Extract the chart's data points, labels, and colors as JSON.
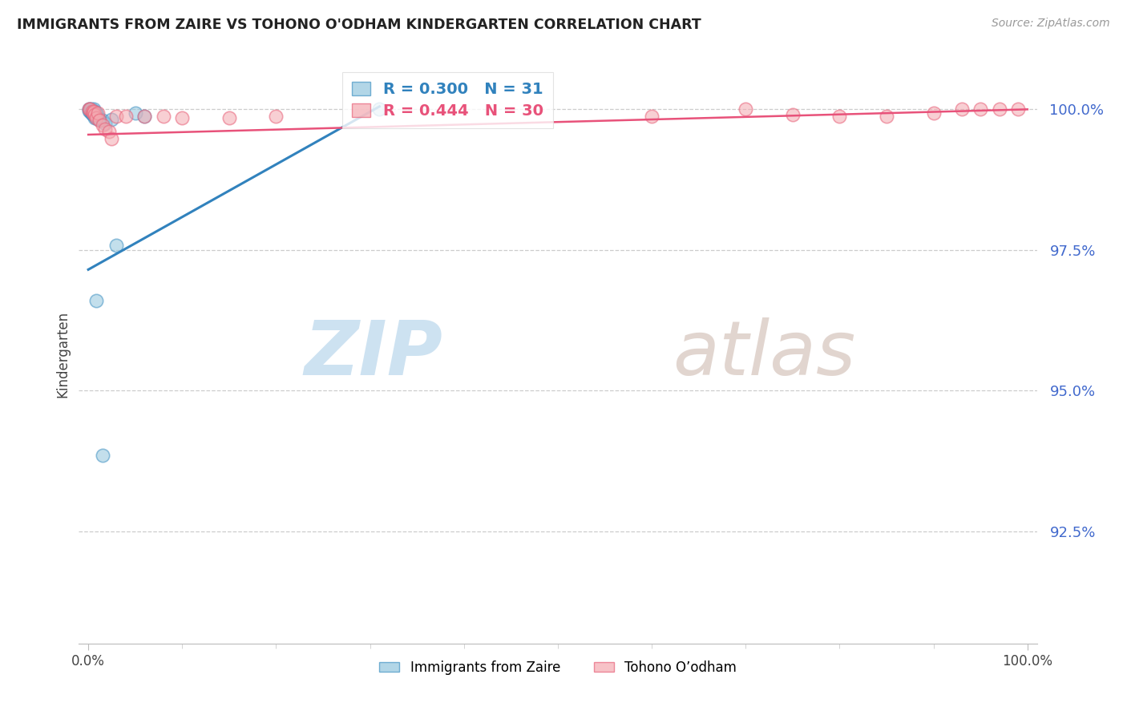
{
  "title": "IMMIGRANTS FROM ZAIRE VS TOHONO O'ODHAM KINDERGARTEN CORRELATION CHART",
  "source": "Source: ZipAtlas.com",
  "ylabel": "Kindergarten",
  "legend_blue_r": "0.300",
  "legend_blue_n": "31",
  "legend_pink_r": "0.444",
  "legend_pink_n": "30",
  "legend_label_blue": "Immigrants from Zaire",
  "legend_label_pink": "Tohono O’odham",
  "blue_color": "#92c5de",
  "pink_color": "#f4a9b0",
  "blue_edge_color": "#4393c3",
  "pink_edge_color": "#e8627a",
  "blue_line_color": "#3182bd",
  "pink_line_color": "#e8527a",
  "watermark_zip_color": "#c8dff0",
  "watermark_atlas_color": "#d8c8c0",
  "ytick_labels": [
    "100.0%",
    "97.5%",
    "95.0%",
    "92.5%"
  ],
  "ytick_values": [
    1.0,
    0.975,
    0.95,
    0.925
  ],
  "ytick_color": "#4169cd",
  "xmin": 0.0,
  "xmax": 1.0,
  "ymin": 0.905,
  "ymax": 1.008,
  "blue_x": [
    0.001,
    0.001,
    0.002,
    0.002,
    0.003,
    0.003,
    0.003,
    0.004,
    0.004,
    0.005,
    0.005,
    0.006,
    0.006,
    0.007,
    0.007,
    0.007,
    0.008,
    0.008,
    0.009,
    0.01,
    0.011,
    0.012,
    0.015,
    0.018,
    0.025,
    0.03,
    0.05,
    0.06,
    0.31,
    0.015,
    0.008
  ],
  "blue_y": [
    1.0,
    0.9998,
    1.0,
    0.9997,
    1.0,
    0.9997,
    0.9994,
    0.9994,
    0.9992,
    0.9994,
    0.999,
    1.0,
    0.9993,
    0.9996,
    0.9988,
    0.9985,
    0.9993,
    0.9985,
    0.999,
    0.9985,
    0.9982,
    0.9982,
    0.998,
    0.9975,
    0.9982,
    0.9758,
    0.9993,
    0.9988,
    1.0,
    0.9385,
    0.966
  ],
  "pink_x": [
    0.001,
    0.002,
    0.004,
    0.005,
    0.006,
    0.007,
    0.008,
    0.01,
    0.012,
    0.015,
    0.018,
    0.022,
    0.025,
    0.03,
    0.04,
    0.06,
    0.08,
    0.1,
    0.15,
    0.2,
    0.6,
    0.7,
    0.75,
    0.8,
    0.85,
    0.9,
    0.93,
    0.95,
    0.97,
    0.99
  ],
  "pink_y": [
    1.0,
    1.0,
    0.9997,
    0.9994,
    0.9996,
    0.999,
    0.9985,
    0.9993,
    0.998,
    0.9972,
    0.9965,
    0.996,
    0.9948,
    0.9988,
    0.9988,
    0.9988,
    0.9988,
    0.9985,
    0.9985,
    0.9988,
    0.9988,
    1.0,
    0.999,
    0.9988,
    0.9988,
    0.9993,
    1.0,
    1.0,
    1.0,
    1.0
  ],
  "blue_line_x": [
    0.0,
    0.31
  ],
  "blue_line_y": [
    0.9715,
    1.0005
  ],
  "pink_line_x": [
    0.0,
    1.0
  ],
  "pink_line_y": [
    0.9955,
    1.0
  ]
}
